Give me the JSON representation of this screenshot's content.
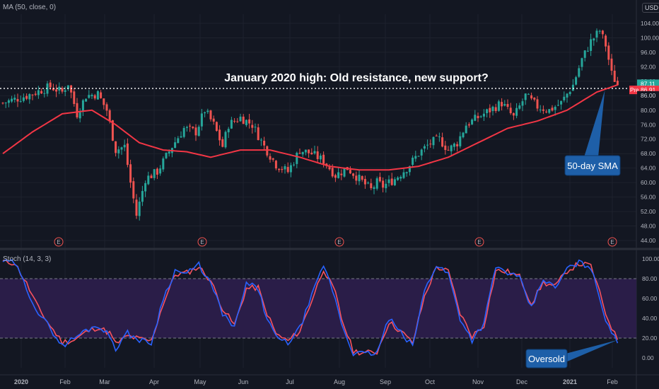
{
  "header": {
    "ma_label": "MA (50, close, 0)",
    "currency": "USD"
  },
  "stoch": {
    "label": "Stoch (14, 3, 3)"
  },
  "annotations": {
    "title": "January 2020 high: Old resistance, new support?",
    "sma_callout": "50-day SMA",
    "oversold_callout": "Oversold"
  },
  "badges": {
    "current_price": "87.11",
    "sma_value": "86.91",
    "sma_prefix": "Pre",
    "resistance": "86.00"
  },
  "earnings_marker": "E",
  "colors": {
    "bg": "#131722",
    "up": "#26a69a",
    "down": "#ef5350",
    "sma": "#f23645",
    "stoch_k": "#2962ff",
    "stoch_d": "#f7525f",
    "band": "#2a1d48",
    "callout": "#1e5fa8"
  },
  "chart_data": {
    "type": "candlestick",
    "title": "January 2020 high: Old resistance, new support?",
    "price_axis": {
      "ticks": [
        "104.00",
        "100.00",
        "96.00",
        "92.00",
        "88.00",
        "84.00",
        "80.00",
        "76.00",
        "72.00",
        "68.00",
        "64.00",
        "60.00",
        "56.00",
        "52.00",
        "48.00",
        "44.00"
      ],
      "range": [
        44,
        104
      ]
    },
    "x_labels": [
      "2020",
      "Feb",
      "Mar",
      "Apr",
      "May",
      "Jun",
      "Jul",
      "Aug",
      "Sep",
      "Oct",
      "Nov",
      "Dec",
      "2021",
      "Feb"
    ],
    "resistance_level": 86.0,
    "earnings_markers_at": [
      "Feb",
      "May",
      "Aug",
      "Oct",
      "Feb"
    ],
    "price_path": [
      [
        0,
        82
      ],
      [
        8,
        84
      ],
      [
        16,
        86.5
      ],
      [
        20,
        85
      ],
      [
        22,
        87.5
      ],
      [
        25,
        79
      ],
      [
        28,
        84
      ],
      [
        32,
        84.5
      ],
      [
        35,
        80
      ],
      [
        38,
        69
      ],
      [
        41,
        70
      ],
      [
        43,
        60
      ],
      [
        45,
        51
      ],
      [
        48,
        61
      ],
      [
        52,
        63
      ],
      [
        57,
        70
      ],
      [
        61,
        75
      ],
      [
        65,
        74
      ],
      [
        68,
        80
      ],
      [
        71,
        76
      ],
      [
        74,
        70
      ],
      [
        76,
        76
      ],
      [
        80,
        78
      ],
      [
        84,
        76
      ],
      [
        88,
        70
      ],
      [
        92,
        65
      ],
      [
        96,
        63
      ],
      [
        100,
        69
      ],
      [
        104,
        68
      ],
      [
        108,
        66
      ],
      [
        112,
        62
      ],
      [
        116,
        64
      ],
      [
        120,
        61
      ],
      [
        124,
        58
      ],
      [
        126,
        60
      ],
      [
        128,
        59
      ],
      [
        132,
        61
      ],
      [
        136,
        64
      ],
      [
        140,
        68
      ],
      [
        144,
        71
      ],
      [
        147,
        72
      ],
      [
        150,
        69
      ],
      [
        153,
        71
      ],
      [
        156,
        76
      ],
      [
        160,
        78
      ],
      [
        164,
        80
      ],
      [
        168,
        82
      ],
      [
        172,
        78
      ],
      [
        176,
        84
      ],
      [
        180,
        81
      ],
      [
        184,
        80
      ],
      [
        188,
        82
      ],
      [
        192,
        87
      ],
      [
        195,
        94
      ],
      [
        198,
        99
      ],
      [
        201,
        102
      ],
      [
        203,
        98
      ],
      [
        205,
        90
      ],
      [
        207,
        87
      ]
    ],
    "sma_path": [
      [
        0,
        68
      ],
      [
        10,
        74
      ],
      [
        20,
        79
      ],
      [
        30,
        80
      ],
      [
        38,
        76
      ],
      [
        46,
        71
      ],
      [
        54,
        69
      ],
      [
        62,
        68.5
      ],
      [
        70,
        67
      ],
      [
        80,
        69
      ],
      [
        90,
        69
      ],
      [
        100,
        67
      ],
      [
        110,
        64.5
      ],
      [
        120,
        63.5
      ],
      [
        130,
        63.5
      ],
      [
        140,
        64.5
      ],
      [
        150,
        67
      ],
      [
        160,
        71
      ],
      [
        170,
        75
      ],
      [
        180,
        77
      ],
      [
        190,
        80
      ],
      [
        200,
        85
      ],
      [
        207,
        87
      ]
    ],
    "stochastic": {
      "range": [
        0,
        100
      ],
      "ticks": [
        "100.00",
        "80.00",
        "60.00",
        "40.00",
        "20.00",
        "0.00"
      ],
      "overbought": 80,
      "oversold": 20,
      "k": [
        [
          0,
          98
        ],
        [
          4,
          96
        ],
        [
          8,
          70
        ],
        [
          12,
          45
        ],
        [
          16,
          30
        ],
        [
          20,
          12
        ],
        [
          24,
          20
        ],
        [
          28,
          28
        ],
        [
          32,
          33
        ],
        [
          36,
          22
        ],
        [
          38,
          10
        ],
        [
          42,
          25
        ],
        [
          46,
          18
        ],
        [
          50,
          15
        ],
        [
          54,
          60
        ],
        [
          58,
          88
        ],
        [
          62,
          85
        ],
        [
          66,
          94
        ],
        [
          70,
          75
        ],
        [
          74,
          45
        ],
        [
          78,
          30
        ],
        [
          82,
          75
        ],
        [
          86,
          70
        ],
        [
          88,
          48
        ],
        [
          92,
          20
        ],
        [
          96,
          15
        ],
        [
          100,
          30
        ],
        [
          104,
          62
        ],
        [
          108,
          94
        ],
        [
          112,
          60
        ],
        [
          114,
          35
        ],
        [
          118,
          5
        ],
        [
          122,
          4
        ],
        [
          126,
          5
        ],
        [
          130,
          40
        ],
        [
          134,
          25
        ],
        [
          138,
          12
        ],
        [
          142,
          68
        ],
        [
          146,
          94
        ],
        [
          150,
          85
        ],
        [
          154,
          40
        ],
        [
          158,
          18
        ],
        [
          162,
          35
        ],
        [
          166,
          92
        ],
        [
          170,
          86
        ],
        [
          174,
          80
        ],
        [
          178,
          50
        ],
        [
          182,
          80
        ],
        [
          186,
          70
        ],
        [
          190,
          90
        ],
        [
          194,
          96
        ],
        [
          198,
          92
        ],
        [
          200,
          70
        ],
        [
          203,
          40
        ],
        [
          206,
          20
        ],
        [
          207,
          15
        ]
      ],
      "d": [
        [
          0,
          97
        ],
        [
          4,
          96
        ],
        [
          8,
          75
        ],
        [
          12,
          50
        ],
        [
          16,
          32
        ],
        [
          20,
          16
        ],
        [
          24,
          18
        ],
        [
          28,
          26
        ],
        [
          32,
          31
        ],
        [
          36,
          25
        ],
        [
          38,
          14
        ],
        [
          42,
          22
        ],
        [
          46,
          19
        ],
        [
          50,
          17
        ],
        [
          54,
          55
        ],
        [
          58,
          84
        ],
        [
          62,
          86
        ],
        [
          66,
          92
        ],
        [
          70,
          78
        ],
        [
          74,
          50
        ],
        [
          78,
          33
        ],
        [
          82,
          70
        ],
        [
          86,
          71
        ],
        [
          88,
          52
        ],
        [
          92,
          24
        ],
        [
          96,
          17
        ],
        [
          100,
          27
        ],
        [
          104,
          58
        ],
        [
          108,
          90
        ],
        [
          112,
          65
        ],
        [
          114,
          40
        ],
        [
          118,
          7
        ],
        [
          122,
          5
        ],
        [
          126,
          6
        ],
        [
          130,
          36
        ],
        [
          134,
          27
        ],
        [
          138,
          15
        ],
        [
          142,
          62
        ],
        [
          146,
          92
        ],
        [
          150,
          87
        ],
        [
          154,
          45
        ],
        [
          158,
          22
        ],
        [
          162,
          33
        ],
        [
          166,
          88
        ],
        [
          170,
          87
        ],
        [
          174,
          82
        ],
        [
          178,
          55
        ],
        [
          182,
          76
        ],
        [
          186,
          72
        ],
        [
          190,
          88
        ],
        [
          194,
          95
        ],
        [
          198,
          93
        ],
        [
          200,
          75
        ],
        [
          203,
          45
        ],
        [
          206,
          24
        ],
        [
          207,
          20
        ]
      ]
    }
  }
}
